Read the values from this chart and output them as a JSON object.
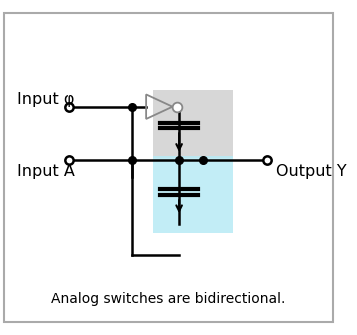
{
  "title": "Analog switches are bidirectional.",
  "label_input_phi": "Input φ",
  "label_input_a": "Input A",
  "label_output_y": "Output Y",
  "bg_color": "#ffffff",
  "border_color": "#aaaaaa",
  "line_color": "#000000",
  "gray_bg": "#d0d0d0",
  "cyan_bg": "#b8eaf5",
  "buf_color": "#888888"
}
